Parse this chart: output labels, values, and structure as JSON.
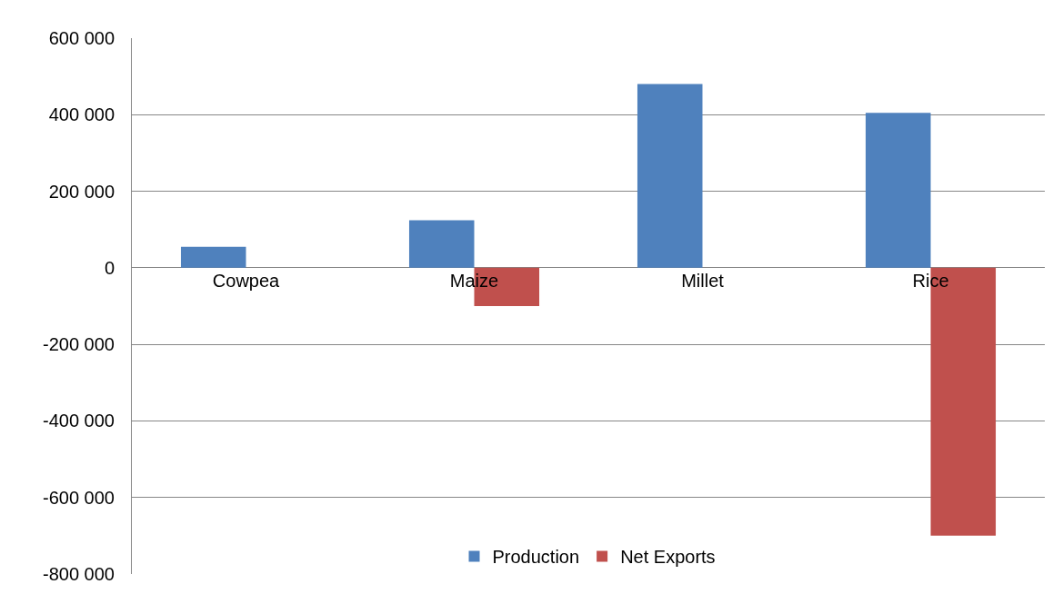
{
  "chart_data": {
    "type": "bar",
    "categories": [
      "Cowpea",
      "Maize",
      "Millet",
      "Rice"
    ],
    "series": [
      {
        "name": "Production",
        "color": "#4f81bd",
        "values": [
          55000,
          124000,
          480000,
          405000
        ]
      },
      {
        "name": "Net Exports",
        "color": "#c0504d",
        "values": [
          0,
          -100000,
          0,
          -700000
        ]
      }
    ],
    "ylim": [
      -800000,
      600000
    ],
    "yticks": [
      {
        "value": -800000,
        "label": "-800 000"
      },
      {
        "value": -600000,
        "label": "-600 000"
      },
      {
        "value": -400000,
        "label": "-400 000"
      },
      {
        "value": -200000,
        "label": "-200 000"
      },
      0,
      {
        "value": 200000,
        "label": "200 000"
      },
      {
        "value": 400000,
        "label": "400 000"
      },
      {
        "value": 600000,
        "label": "600 000"
      }
    ],
    "grid": "y",
    "legend": "bottom"
  }
}
